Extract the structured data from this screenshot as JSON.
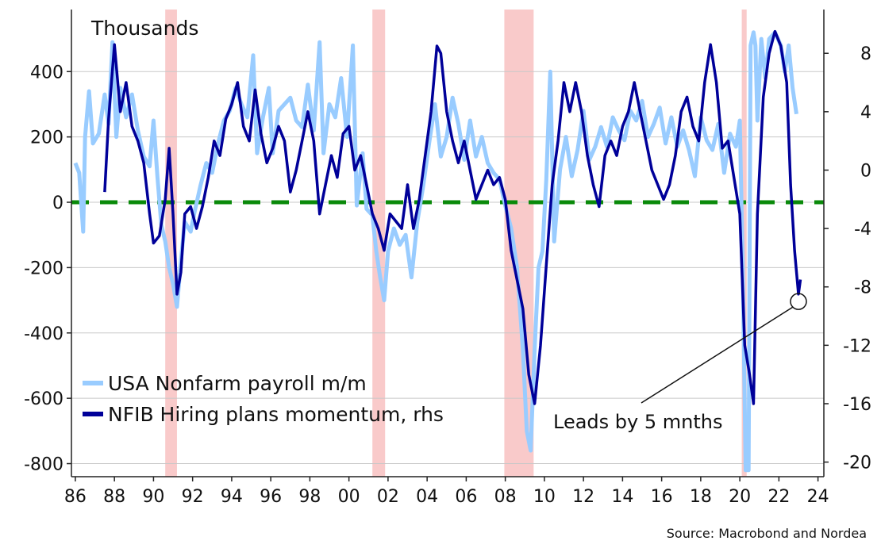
{
  "chart_data": {
    "type": "line",
    "y_unit_label": "Thousands",
    "x_tick_labels": [
      "86",
      "88",
      "90",
      "92",
      "94",
      "96",
      "98",
      "00",
      "02",
      "04",
      "06",
      "08",
      "10",
      "12",
      "14",
      "16",
      "18",
      "20",
      "22",
      "24"
    ],
    "x_tick_years": [
      1986,
      1988,
      1990,
      1992,
      1994,
      1996,
      1998,
      2000,
      2002,
      2004,
      2006,
      2008,
      2010,
      2012,
      2014,
      2016,
      2018,
      2020,
      2022,
      2024
    ],
    "x_range": [
      1985.8,
      2024.3
    ],
    "y_left": {
      "range": [
        -840,
        590
      ],
      "ticks": [
        400,
        200,
        0,
        -200,
        -400,
        -600,
        -800
      ],
      "tick_labels": [
        "400",
        "200",
        "0",
        "-200",
        "-400",
        "-600",
        "-800"
      ]
    },
    "y_right": {
      "range": [
        -21,
        11
      ],
      "ticks": [
        8,
        4,
        0,
        -4,
        -8,
        -12,
        -16,
        -20
      ],
      "tick_labels": [
        "8",
        "4",
        "0",
        "-4",
        "-8",
        "-12",
        "-16",
        "-20"
      ]
    },
    "recessions": [
      [
        1990.6,
        1991.2
      ],
      [
        2001.2,
        2001.85
      ],
      [
        2007.95,
        2009.45
      ],
      [
        2020.1,
        2020.35
      ]
    ],
    "zero_line": {
      "value": 0,
      "color": "#0a8a0a",
      "style": "dashed"
    },
    "series": [
      {
        "name": "USA Nonfarm payroll m/m",
        "axis": "left",
        "color": "#99ccff",
        "points": [
          [
            1986.0,
            120
          ],
          [
            1986.2,
            90
          ],
          [
            1986.4,
            -90
          ],
          [
            1986.5,
            200
          ],
          [
            1986.7,
            340
          ],
          [
            1986.9,
            180
          ],
          [
            1987.2,
            210
          ],
          [
            1987.5,
            330
          ],
          [
            1987.7,
            240
          ],
          [
            1987.9,
            490
          ],
          [
            1988.1,
            200
          ],
          [
            1988.3,
            350
          ],
          [
            1988.6,
            260
          ],
          [
            1988.9,
            330
          ],
          [
            1989.2,
            220
          ],
          [
            1989.5,
            140
          ],
          [
            1989.8,
            110
          ],
          [
            1990.0,
            250
          ],
          [
            1990.2,
            80
          ],
          [
            1990.4,
            -70
          ],
          [
            1990.6,
            -120
          ],
          [
            1990.8,
            -200
          ],
          [
            1991.0,
            -250
          ],
          [
            1991.2,
            -320
          ],
          [
            1991.4,
            -180
          ],
          [
            1991.6,
            -60
          ],
          [
            1991.9,
            -90
          ],
          [
            1992.1,
            -30
          ],
          [
            1992.4,
            50
          ],
          [
            1992.7,
            120
          ],
          [
            1993.0,
            90
          ],
          [
            1993.3,
            180
          ],
          [
            1993.6,
            250
          ],
          [
            1993.9,
            280
          ],
          [
            1994.2,
            350
          ],
          [
            1994.5,
            300
          ],
          [
            1994.8,
            260
          ],
          [
            1995.1,
            450
          ],
          [
            1995.3,
            150
          ],
          [
            1995.6,
            260
          ],
          [
            1995.9,
            350
          ],
          [
            1996.1,
            150
          ],
          [
            1996.4,
            280
          ],
          [
            1996.7,
            300
          ],
          [
            1997.0,
            320
          ],
          [
            1997.3,
            250
          ],
          [
            1997.6,
            230
          ],
          [
            1997.9,
            360
          ],
          [
            1998.2,
            220
          ],
          [
            1998.5,
            490
          ],
          [
            1998.7,
            150
          ],
          [
            1999.0,
            300
          ],
          [
            1999.3,
            260
          ],
          [
            1999.6,
            380
          ],
          [
            1999.9,
            200
          ],
          [
            2000.2,
            480
          ],
          [
            2000.4,
            -10
          ],
          [
            2000.7,
            150
          ],
          [
            2000.9,
            -20
          ],
          [
            2001.2,
            -40
          ],
          [
            2001.4,
            -150
          ],
          [
            2001.6,
            -230
          ],
          [
            2001.8,
            -300
          ],
          [
            2002.0,
            -150
          ],
          [
            2002.3,
            -80
          ],
          [
            2002.6,
            -130
          ],
          [
            2002.9,
            -100
          ],
          [
            2003.2,
            -230
          ],
          [
            2003.5,
            -60
          ],
          [
            2003.8,
            50
          ],
          [
            2004.1,
            180
          ],
          [
            2004.4,
            300
          ],
          [
            2004.7,
            140
          ],
          [
            2005.0,
            200
          ],
          [
            2005.3,
            320
          ],
          [
            2005.6,
            240
          ],
          [
            2005.9,
            130
          ],
          [
            2006.2,
            250
          ],
          [
            2006.5,
            140
          ],
          [
            2006.8,
            200
          ],
          [
            2007.1,
            120
          ],
          [
            2007.4,
            90
          ],
          [
            2007.7,
            70
          ],
          [
            2008.0,
            -10
          ],
          [
            2008.3,
            -80
          ],
          [
            2008.6,
            -200
          ],
          [
            2008.9,
            -450
          ],
          [
            2009.1,
            -700
          ],
          [
            2009.3,
            -760
          ],
          [
            2009.5,
            -450
          ],
          [
            2009.7,
            -200
          ],
          [
            2009.9,
            -150
          ],
          [
            2010.1,
            70
          ],
          [
            2010.3,
            400
          ],
          [
            2010.5,
            -120
          ],
          [
            2010.8,
            100
          ],
          [
            2011.1,
            200
          ],
          [
            2011.4,
            80
          ],
          [
            2011.7,
            160
          ],
          [
            2012.0,
            280
          ],
          [
            2012.3,
            130
          ],
          [
            2012.6,
            170
          ],
          [
            2012.9,
            230
          ],
          [
            2013.2,
            170
          ],
          [
            2013.5,
            260
          ],
          [
            2013.8,
            220
          ],
          [
            2014.1,
            190
          ],
          [
            2014.4,
            280
          ],
          [
            2014.7,
            250
          ],
          [
            2015.0,
            310
          ],
          [
            2015.3,
            200
          ],
          [
            2015.6,
            240
          ],
          [
            2015.9,
            290
          ],
          [
            2016.2,
            180
          ],
          [
            2016.5,
            260
          ],
          [
            2016.8,
            170
          ],
          [
            2017.1,
            220
          ],
          [
            2017.4,
            160
          ],
          [
            2017.7,
            80
          ],
          [
            2018.0,
            260
          ],
          [
            2018.3,
            190
          ],
          [
            2018.6,
            160
          ],
          [
            2018.9,
            240
          ],
          [
            2019.2,
            90
          ],
          [
            2019.5,
            210
          ],
          [
            2019.8,
            170
          ],
          [
            2020.0,
            250
          ],
          [
            2020.15,
            -200
          ],
          [
            2020.3,
            -820
          ],
          [
            2020.45,
            -820
          ],
          [
            2020.55,
            480
          ],
          [
            2020.7,
            520
          ],
          [
            2020.8,
            480
          ],
          [
            2020.9,
            250
          ],
          [
            2021.1,
            500
          ],
          [
            2021.3,
            380
          ],
          [
            2021.5,
            500
          ],
          [
            2021.8,
            520
          ],
          [
            2022.1,
            480
          ],
          [
            2022.3,
            400
          ],
          [
            2022.5,
            480
          ],
          [
            2022.7,
            350
          ],
          [
            2022.9,
            270
          ]
        ]
      },
      {
        "name": "NFIB Hiring plans momentum, rhs",
        "axis": "right",
        "color": "#000099",
        "points": [
          [
            1987.5,
            -1.5
          ],
          [
            1987.7,
            3.5
          ],
          [
            1988.0,
            8.6
          ],
          [
            1988.3,
            4.0
          ],
          [
            1988.6,
            6.0
          ],
          [
            1988.9,
            3.0
          ],
          [
            1989.2,
            2.0
          ],
          [
            1989.5,
            0.5
          ],
          [
            1989.8,
            -3.0
          ],
          [
            1990.0,
            -5.0
          ],
          [
            1990.3,
            -4.5
          ],
          [
            1990.6,
            -2.0
          ],
          [
            1990.8,
            1.5
          ],
          [
            1991.0,
            -3.0
          ],
          [
            1991.2,
            -8.5
          ],
          [
            1991.4,
            -7.0
          ],
          [
            1991.6,
            -3.0
          ],
          [
            1991.9,
            -2.5
          ],
          [
            1992.2,
            -4.0
          ],
          [
            1992.5,
            -2.5
          ],
          [
            1992.8,
            -0.5
          ],
          [
            1993.1,
            2.0
          ],
          [
            1993.4,
            1.0
          ],
          [
            1993.7,
            3.5
          ],
          [
            1994.0,
            4.5
          ],
          [
            1994.3,
            6.0
          ],
          [
            1994.6,
            3.0
          ],
          [
            1994.9,
            2.0
          ],
          [
            1995.2,
            5.5
          ],
          [
            1995.5,
            2.5
          ],
          [
            1995.8,
            0.5
          ],
          [
            1996.1,
            1.5
          ],
          [
            1996.4,
            3.0
          ],
          [
            1996.7,
            2.0
          ],
          [
            1997.0,
            -1.5
          ],
          [
            1997.3,
            0.0
          ],
          [
            1997.6,
            2.0
          ],
          [
            1997.9,
            4.0
          ],
          [
            1998.2,
            2.0
          ],
          [
            1998.5,
            -3.0
          ],
          [
            1998.8,
            -1.0
          ],
          [
            1999.1,
            1.0
          ],
          [
            1999.4,
            -0.5
          ],
          [
            1999.7,
            2.5
          ],
          [
            2000.0,
            3.0
          ],
          [
            2000.3,
            0.0
          ],
          [
            2000.6,
            1.0
          ],
          [
            2000.9,
            -1.0
          ],
          [
            2001.2,
            -3.0
          ],
          [
            2001.5,
            -4.0
          ],
          [
            2001.8,
            -5.5
          ],
          [
            2002.1,
            -3.0
          ],
          [
            2002.4,
            -3.5
          ],
          [
            2002.7,
            -4.0
          ],
          [
            2003.0,
            -1.0
          ],
          [
            2003.3,
            -4.0
          ],
          [
            2003.6,
            -2.0
          ],
          [
            2003.9,
            1.0
          ],
          [
            2004.2,
            4.0
          ],
          [
            2004.5,
            8.5
          ],
          [
            2004.7,
            8.0
          ],
          [
            2005.0,
            4.0
          ],
          [
            2005.3,
            2.0
          ],
          [
            2005.6,
            0.5
          ],
          [
            2005.9,
            2.0
          ],
          [
            2006.2,
            0.0
          ],
          [
            2006.5,
            -2.0
          ],
          [
            2006.8,
            -1.0
          ],
          [
            2007.1,
            0.0
          ],
          [
            2007.4,
            -1.0
          ],
          [
            2007.7,
            -0.5
          ],
          [
            2008.0,
            -2.0
          ],
          [
            2008.3,
            -5.5
          ],
          [
            2008.6,
            -7.5
          ],
          [
            2008.9,
            -9.5
          ],
          [
            2009.2,
            -14.0
          ],
          [
            2009.5,
            -16.0
          ],
          [
            2009.8,
            -12.0
          ],
          [
            2010.1,
            -6.5
          ],
          [
            2010.4,
            -1.0
          ],
          [
            2010.7,
            2.0
          ],
          [
            2011.0,
            6.0
          ],
          [
            2011.3,
            4.0
          ],
          [
            2011.6,
            6.0
          ],
          [
            2011.9,
            4.0
          ],
          [
            2012.2,
            1.0
          ],
          [
            2012.5,
            -1.0
          ],
          [
            2012.8,
            -2.5
          ],
          [
            2013.1,
            1.0
          ],
          [
            2013.4,
            2.0
          ],
          [
            2013.7,
            1.0
          ],
          [
            2014.0,
            3.0
          ],
          [
            2014.3,
            4.0
          ],
          [
            2014.6,
            6.0
          ],
          [
            2014.9,
            4.0
          ],
          [
            2015.2,
            2.0
          ],
          [
            2015.5,
            0.0
          ],
          [
            2015.8,
            -1.0
          ],
          [
            2016.1,
            -2.0
          ],
          [
            2016.4,
            -1.0
          ],
          [
            2016.7,
            1.0
          ],
          [
            2017.0,
            4.0
          ],
          [
            2017.3,
            5.0
          ],
          [
            2017.6,
            3.0
          ],
          [
            2017.9,
            2.0
          ],
          [
            2018.2,
            6.0
          ],
          [
            2018.5,
            8.6
          ],
          [
            2018.8,
            6.0
          ],
          [
            2019.1,
            1.5
          ],
          [
            2019.4,
            2.0
          ],
          [
            2019.7,
            -0.5
          ],
          [
            2020.0,
            -3.0
          ],
          [
            2020.25,
            -12.0
          ],
          [
            2020.5,
            -14.0
          ],
          [
            2020.7,
            -16.0
          ],
          [
            2020.9,
            -3.0
          ],
          [
            2021.2,
            5.0
          ],
          [
            2021.5,
            8.0
          ],
          [
            2021.8,
            9.5
          ],
          [
            2022.1,
            8.5
          ],
          [
            2022.4,
            6.0
          ],
          [
            2022.6,
            -1.0
          ],
          [
            2022.8,
            -5.5
          ],
          [
            2023.0,
            -8.5
          ],
          [
            2023.1,
            -7.5
          ]
        ]
      }
    ],
    "annotation": {
      "text": "Leads by 5 mnths",
      "point": [
        2023.0,
        -9.0
      ],
      "axis": "right"
    },
    "legend": {
      "position": "bottom-left"
    },
    "grid": "horizontal",
    "source": "Source: Macrobond and Nordea"
  }
}
